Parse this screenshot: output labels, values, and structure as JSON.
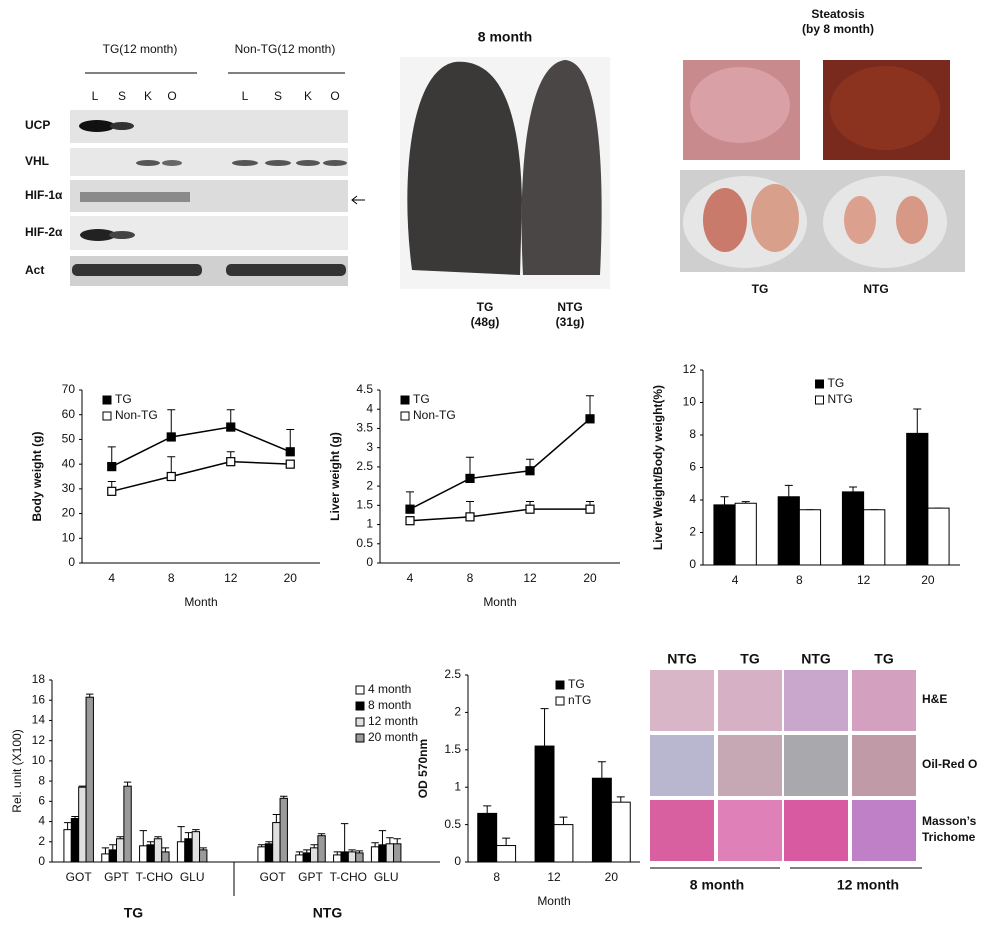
{
  "blot": {
    "groups": [
      "TG(12 month)",
      "Non-TG(12  month)"
    ],
    "lanes": [
      "L",
      "S",
      "K",
      "O",
      "L",
      "S",
      "K",
      "O"
    ],
    "rows": [
      "UCP",
      "VHL",
      "HIF-1α",
      "HIF-2α",
      "Act"
    ]
  },
  "mice_photo": {
    "title": "8 month",
    "labels": [
      [
        "TG",
        "(48g)"
      ],
      [
        "NTG",
        "(31g)"
      ]
    ]
  },
  "steatosis": {
    "title": [
      "Steatosis",
      "(by 8 month)"
    ],
    "labels": [
      "TG",
      "NTG"
    ]
  },
  "histology": {
    "columns": [
      "NTG",
      "TG",
      "NTG",
      "TG"
    ],
    "row_labels": [
      [
        "H&E"
      ],
      [
        "Oil-Red  O"
      ],
      [
        "Masson’s",
        "Trichome"
      ]
    ],
    "periods": [
      "8 month",
      "12 month"
    ]
  },
  "chart_data": [
    {
      "type": "line",
      "xlabel": "Month",
      "ylabel": "Body weight  (g)",
      "categories": [
        "4",
        "8",
        "12",
        "20"
      ],
      "series": [
        {
          "name": "TG",
          "color": "#000000",
          "fill": "#000000",
          "values": [
            39,
            51,
            55,
            45
          ],
          "errors": [
            8,
            11,
            7,
            9
          ]
        },
        {
          "name": "Non-TG",
          "color": "#000000",
          "fill": "#ffffff",
          "values": [
            29,
            35,
            41,
            40
          ],
          "errors": [
            4,
            8,
            4,
            1
          ]
        }
      ],
      "ylim": [
        0,
        70
      ],
      "yticks": [
        0,
        10,
        20,
        30,
        40,
        50,
        60,
        70
      ],
      "grid": false,
      "legend": "upper left"
    },
    {
      "type": "line",
      "xlabel": "Month",
      "ylabel": "Liver weight  (g)",
      "categories": [
        "4",
        "8",
        "12",
        "20"
      ],
      "series": [
        {
          "name": "TG",
          "color": "#000000",
          "fill": "#000000",
          "values": [
            1.4,
            2.2,
            2.4,
            3.75
          ],
          "errors": [
            0.45,
            0.55,
            0.3,
            0.6
          ]
        },
        {
          "name": "Non-TG",
          "color": "#000000",
          "fill": "#ffffff",
          "values": [
            1.1,
            1.2,
            1.4,
            1.4
          ],
          "errors": [
            0.1,
            0.4,
            0.2,
            0.2
          ]
        }
      ],
      "ylim": [
        0,
        4.5
      ],
      "yticks": [
        0,
        0.5,
        1,
        1.5,
        2,
        2.5,
        3,
        3.5,
        4,
        4.5
      ],
      "grid": false,
      "legend": "upper left"
    },
    {
      "type": "bar",
      "ylabel": "Liver Weight/Body  weight(%)",
      "categories": [
        "4",
        "8",
        "12",
        "20"
      ],
      "series": [
        {
          "name": "TG",
          "color": "#000000",
          "values": [
            3.7,
            4.2,
            4.5,
            8.1
          ],
          "errors": [
            0.5,
            0.7,
            0.3,
            1.5
          ]
        },
        {
          "name": "NTG",
          "color": "#ffffff",
          "values": [
            3.8,
            3.4,
            3.4,
            3.5
          ],
          "errors": [
            0.1,
            0,
            0,
            0
          ]
        }
      ],
      "ylim": [
        0,
        12
      ],
      "yticks": [
        0,
        2,
        4,
        6,
        8,
        10,
        12
      ],
      "grid": false,
      "legend": "upper center"
    },
    {
      "type": "bar",
      "ylabel": "Rel. unit (X100)",
      "groups": [
        "TG",
        "NTG"
      ],
      "categories": [
        "GOT",
        "GPT",
        "T-CHO",
        "GLU",
        "GOT",
        "GPT",
        "T-CHO",
        "GLU"
      ],
      "series": [
        {
          "name": "4 month",
          "color": "#ffffff",
          "values": [
            3.2,
            0.8,
            1.6,
            2.0,
            1.5,
            0.7,
            0.7,
            1.5
          ],
          "errors": [
            0.7,
            0.6,
            1.5,
            1.5,
            0.2,
            0.3,
            0.3,
            0.4
          ]
        },
        {
          "name": "8 month",
          "color": "#000000",
          "values": [
            4.3,
            1.2,
            1.7,
            2.3,
            1.8,
            0.9,
            1.0,
            1.7
          ],
          "errors": [
            0.2,
            0.5,
            0.3,
            0.6,
            0.2,
            0.3,
            2.8,
            1.4
          ]
        },
        {
          "name": "12 month",
          "color": "#e0e0e0",
          "values": [
            7.4,
            2.3,
            2.3,
            3.0,
            3.9,
            1.4,
            1.0,
            1.8
          ],
          "errors": [
            0.1,
            0.2,
            0.2,
            0.2,
            0.8,
            0.3,
            0.2,
            0.6
          ]
        },
        {
          "name": "20 month",
          "color": "#9a9a9a",
          "values": [
            16.3,
            7.5,
            1.0,
            1.2,
            6.3,
            2.6,
            0.9,
            1.8
          ],
          "errors": [
            0.3,
            0.4,
            0.4,
            0.2,
            0.2,
            0.2,
            0.2,
            0.5
          ]
        }
      ],
      "ylim": [
        0,
        18
      ],
      "yticks": [
        0,
        2,
        4,
        6,
        8,
        10,
        12,
        14,
        16,
        18
      ],
      "grid": false,
      "legend": "upper right"
    },
    {
      "type": "bar",
      "xlabel": "Month",
      "ylabel": "OD 570nm",
      "categories": [
        "8",
        "12",
        "20"
      ],
      "series": [
        {
          "name": "TG",
          "color": "#000000",
          "values": [
            0.65,
            1.55,
            1.12
          ],
          "errors": [
            0.1,
            0.5,
            0.22
          ]
        },
        {
          "name": "nTG",
          "color": "#ffffff",
          "values": [
            0.22,
            0.5,
            0.8
          ],
          "errors": [
            0.1,
            0.1,
            0.07
          ]
        }
      ],
      "ylim": [
        0,
        2.5
      ],
      "yticks": [
        0,
        0.5,
        1,
        1.5,
        2,
        2.5
      ],
      "grid": false,
      "legend": "upper right"
    }
  ]
}
